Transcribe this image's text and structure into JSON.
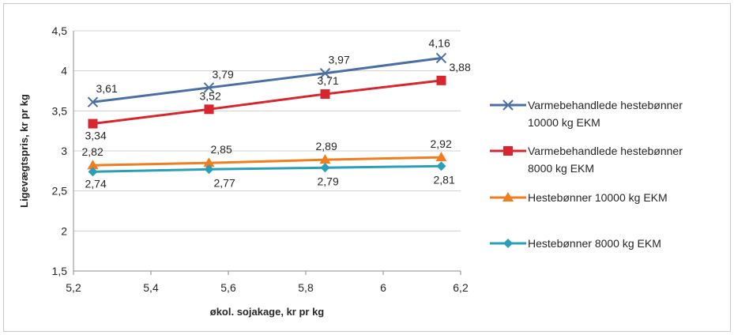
{
  "chart_data": {
    "type": "line",
    "title": "",
    "xlabel": "økol. sojakage, kr pr kg",
    "ylabel": "Ligevægtspris, kr pr kg",
    "xlim": [
      5.2,
      6.2
    ],
    "ylim": [
      1.5,
      4.5
    ],
    "x_ticks": [
      "5,2",
      "5,4",
      "5,6",
      "5,8",
      "6",
      "6,2"
    ],
    "y_ticks": [
      "4,5",
      "4",
      "3,5",
      "3",
      "2,5",
      "2",
      "1,5"
    ],
    "grid": "horizontal",
    "legend_position": "right",
    "x": [
      5.25,
      5.55,
      5.85,
      6.15
    ],
    "series": [
      {
        "name_lines": [
          "Varmebehandlede hestebønner",
          "10000 kg EKM"
        ],
        "values": [
          3.61,
          3.79,
          3.97,
          4.16
        ],
        "labels": [
          "3,61",
          "3,79",
          "3,97",
          "4,16"
        ],
        "color": "#4a6fa5",
        "marker": "x"
      },
      {
        "name_lines": [
          "Varmebehandlede hestebønner",
          "8000 kg EKM"
        ],
        "values": [
          3.34,
          3.52,
          3.71,
          3.88
        ],
        "labels": [
          "3,34",
          "3,52",
          "3,71",
          "3,88"
        ],
        "color": "#d8262e",
        "marker": "square"
      },
      {
        "name_lines": [
          "Hestebønner 10000 kg EKM"
        ],
        "values": [
          2.82,
          2.85,
          2.89,
          2.92
        ],
        "labels": [
          "2,82",
          "2,85",
          "2,89",
          "2,92"
        ],
        "color": "#f07d1e",
        "marker": "triangle"
      },
      {
        "name_lines": [
          "Hestebønner 8000 kg EKM"
        ],
        "values": [
          2.74,
          2.77,
          2.79,
          2.81
        ],
        "labels": [
          "2,74",
          "2,77",
          "2,79",
          "2,81"
        ],
        "color": "#2aa0b8",
        "marker": "diamond"
      }
    ]
  }
}
